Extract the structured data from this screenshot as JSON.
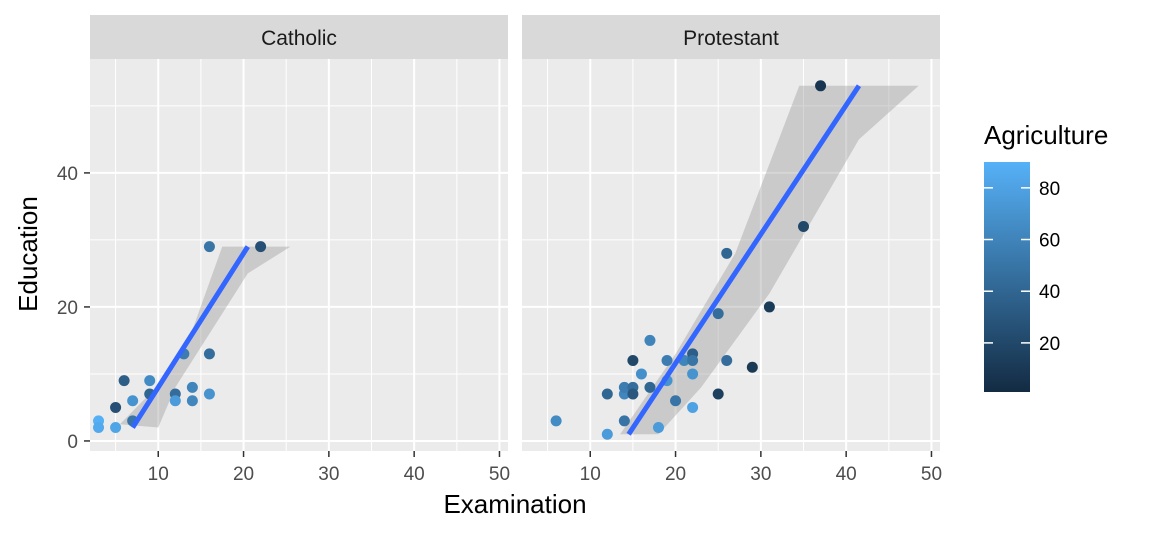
{
  "chart_data": {
    "type": "scatter",
    "xlabel": "Examination",
    "ylabel": "Education",
    "xlim": [
      2,
      51
    ],
    "ylim": [
      -1.5,
      57
    ],
    "x_ticks": [
      10,
      20,
      30,
      40,
      50
    ],
    "y_ticks": [
      0,
      20,
      40
    ],
    "x_tick_labels": [
      "10",
      "20",
      "30",
      "40",
      "50"
    ],
    "y_tick_labels": [
      "0",
      "20",
      "40"
    ],
    "grid": true,
    "legend": {
      "title": "Agriculture",
      "placement": "right",
      "range": [
        1,
        90
      ],
      "ticks": [
        20,
        40,
        60,
        80
      ],
      "tick_labels": [
        "20",
        "40",
        "60",
        "80"
      ],
      "low_color": "#132B43",
      "high_color": "#56B1F7"
    },
    "colors": {
      "panel_bg": "#EBEBEB",
      "strip_bg": "#D9D9D9",
      "grid": "#FFFFFF",
      "fit_line": "#3366FF",
      "ribbon": "#999999"
    },
    "panels": [
      {
        "label": "Catholic",
        "fit": {
          "x": [
            7,
            20.5
          ],
          "y": [
            2,
            29
          ]
        },
        "ribbon": {
          "upper": [
            [
              5.5,
              2.5
            ],
            [
              9,
              7
            ],
            [
              13,
              13
            ],
            [
              17.5,
              29
            ],
            [
              25.5,
              29
            ]
          ],
          "lower": [
            [
              25.5,
              29
            ],
            [
              20.5,
              25
            ],
            [
              16,
              16
            ],
            [
              12,
              8
            ],
            [
              10,
              2
            ],
            [
              5.5,
              2.5
            ]
          ]
        },
        "points": [
          {
            "x": 3,
            "y": 3,
            "agri": 89
          },
          {
            "x": 3,
            "y": 2,
            "agri": 85
          },
          {
            "x": 5,
            "y": 2,
            "agri": 82
          },
          {
            "x": 5,
            "y": 5,
            "agri": 25
          },
          {
            "x": 6,
            "y": 9,
            "agri": 35
          },
          {
            "x": 7,
            "y": 6,
            "agri": 70
          },
          {
            "x": 7,
            "y": 3,
            "agri": 50
          },
          {
            "x": 9,
            "y": 9,
            "agri": 65
          },
          {
            "x": 9,
            "y": 7,
            "agri": 40
          },
          {
            "x": 12,
            "y": 7,
            "agri": 45
          },
          {
            "x": 12,
            "y": 6,
            "agri": 75
          },
          {
            "x": 13,
            "y": 13,
            "agri": 55
          },
          {
            "x": 14,
            "y": 8,
            "agri": 60
          },
          {
            "x": 14,
            "y": 6,
            "agri": 62
          },
          {
            "x": 16,
            "y": 29,
            "agri": 50
          },
          {
            "x": 16,
            "y": 13,
            "agri": 45
          },
          {
            "x": 16,
            "y": 7,
            "agri": 70
          },
          {
            "x": 22,
            "y": 29,
            "agri": 25
          }
        ]
      },
      {
        "label": "Protestant",
        "fit": {
          "x": [
            14.5,
            41.5
          ],
          "y": [
            1,
            53
          ]
        },
        "ribbon": {
          "upper": [
            [
              13.5,
              1
            ],
            [
              20,
              13
            ],
            [
              27,
              28
            ],
            [
              34.5,
              53
            ],
            [
              48.5,
              53
            ]
          ],
          "lower": [
            [
              48.5,
              53
            ],
            [
              41.5,
              45
            ],
            [
              31,
              22
            ],
            [
              23,
              8
            ],
            [
              18,
              1
            ],
            [
              13.5,
              1
            ]
          ]
        },
        "points": [
          {
            "x": 6,
            "y": 3,
            "agri": 65
          },
          {
            "x": 12,
            "y": 1,
            "agri": 75
          },
          {
            "x": 12,
            "y": 7,
            "agri": 40
          },
          {
            "x": 14,
            "y": 3,
            "agri": 50
          },
          {
            "x": 14,
            "y": 7,
            "agri": 62
          },
          {
            "x": 14,
            "y": 8,
            "agri": 55
          },
          {
            "x": 15,
            "y": 12,
            "agri": 20
          },
          {
            "x": 15,
            "y": 8,
            "agri": 45
          },
          {
            "x": 15,
            "y": 7,
            "agri": 30
          },
          {
            "x": 16,
            "y": 10,
            "agri": 68
          },
          {
            "x": 17,
            "y": 15,
            "agri": 60
          },
          {
            "x": 17,
            "y": 8,
            "agri": 40
          },
          {
            "x": 18,
            "y": 2,
            "agri": 75
          },
          {
            "x": 19,
            "y": 12,
            "agri": 55
          },
          {
            "x": 19,
            "y": 9,
            "agri": 70
          },
          {
            "x": 20,
            "y": 6,
            "agri": 50
          },
          {
            "x": 21,
            "y": 12,
            "agri": 60
          },
          {
            "x": 22,
            "y": 13,
            "agri": 35
          },
          {
            "x": 22,
            "y": 12,
            "agri": 50
          },
          {
            "x": 22,
            "y": 10,
            "agri": 70
          },
          {
            "x": 22,
            "y": 5,
            "agri": 80
          },
          {
            "x": 25,
            "y": 19,
            "agri": 45
          },
          {
            "x": 25,
            "y": 7,
            "agri": 15
          },
          {
            "x": 26,
            "y": 28,
            "agri": 40
          },
          {
            "x": 26,
            "y": 12,
            "agri": 45
          },
          {
            "x": 29,
            "y": 11,
            "agri": 10
          },
          {
            "x": 31,
            "y": 20,
            "agri": 12
          },
          {
            "x": 35,
            "y": 32,
            "agri": 20
          },
          {
            "x": 37,
            "y": 53,
            "agri": 8
          }
        ]
      }
    ]
  }
}
